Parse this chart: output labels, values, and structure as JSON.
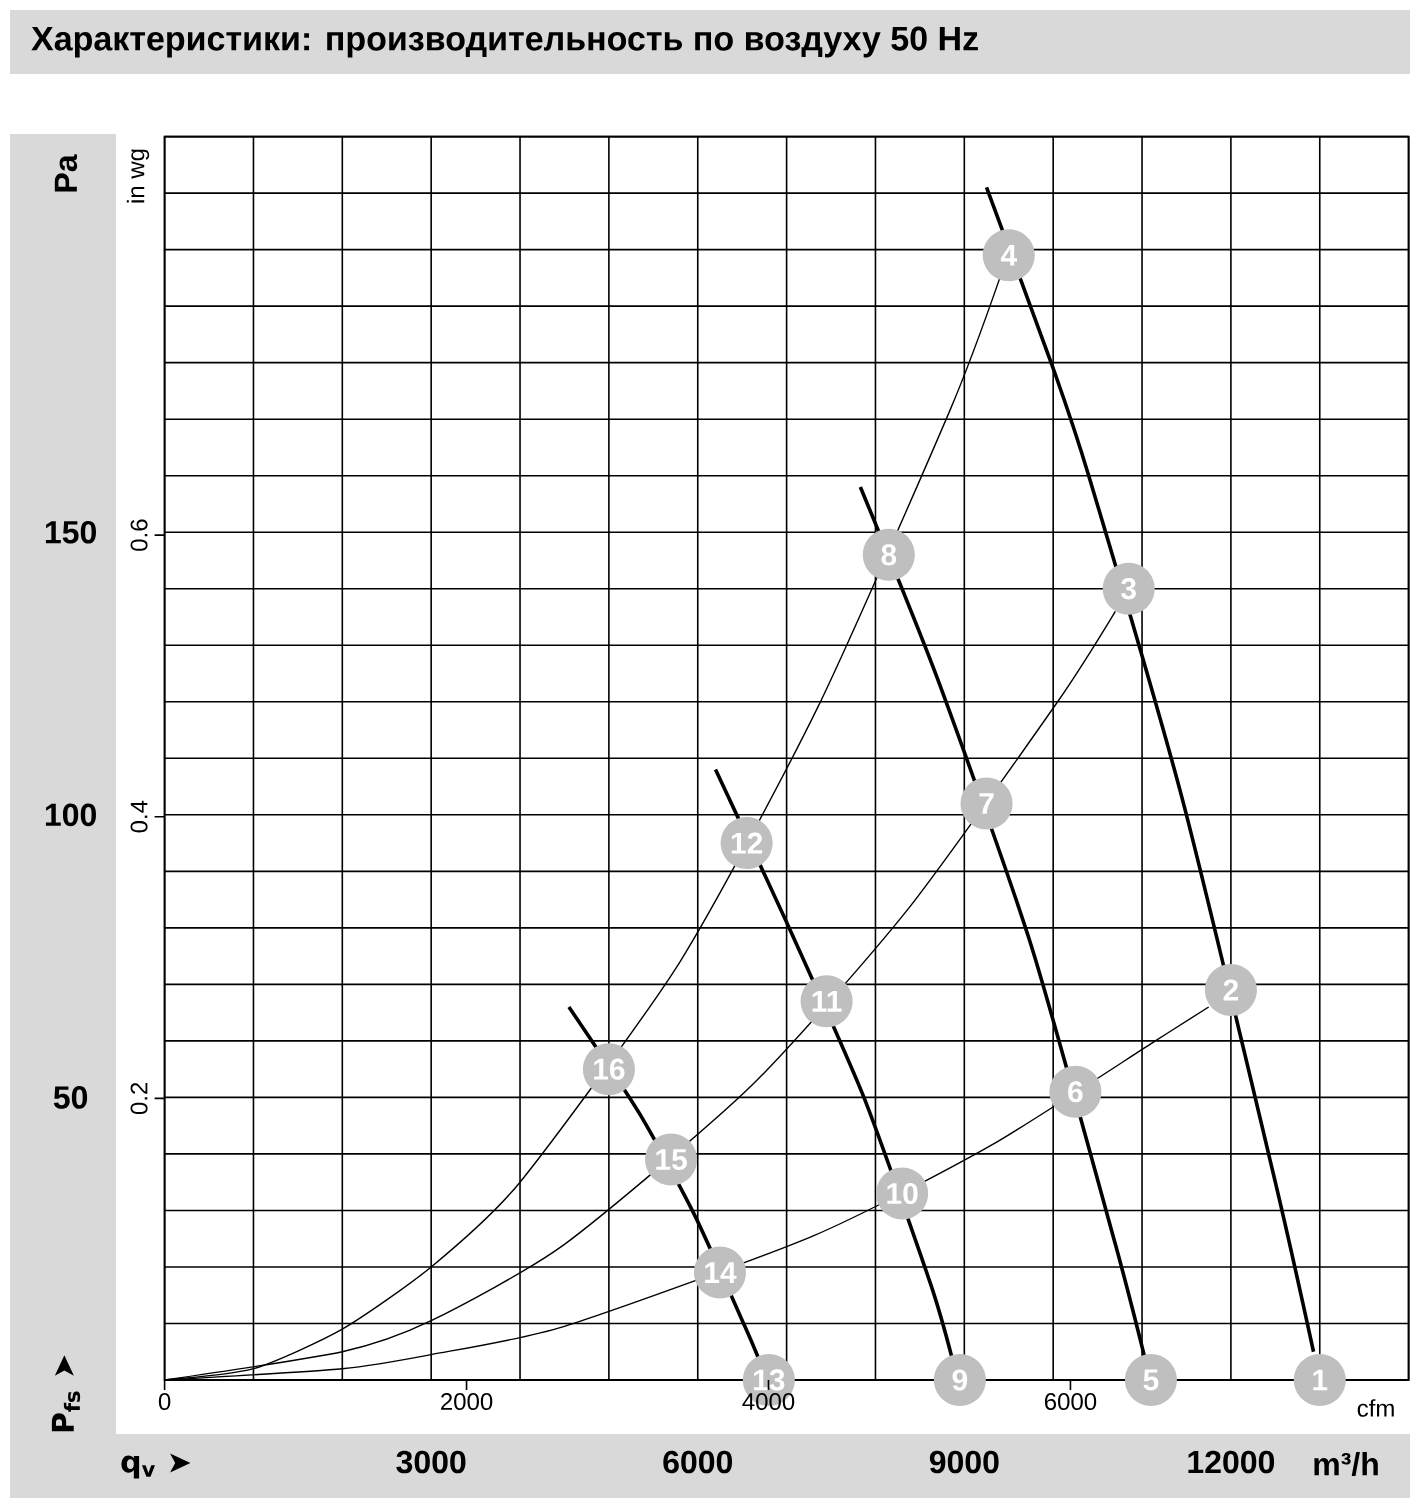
{
  "chart_data": {
    "type": "line",
    "title": "Характеристики: производительность по воздуху 50 Hz",
    "xlabel": "m³/h",
    "ylabel": "Pa",
    "x2label": "cfm",
    "y2label": "in wg",
    "xlim": [
      0,
      14000
    ],
    "ylim": [
      0,
      220
    ],
    "x2lim": [
      0,
      8240
    ],
    "y2lim": [
      0,
      0.883
    ],
    "xticks": [
      {
        "value": 0,
        "label": null
      },
      {
        "value": 1000,
        "label": null
      },
      {
        "value": 2000,
        "label": null
      },
      3000,
      {
        "value": 4000,
        "label": null
      },
      {
        "value": 5000,
        "label": null
      },
      6000,
      {
        "value": 7000,
        "label": null
      },
      {
        "value": 8000,
        "label": null
      },
      9000,
      {
        "value": 10000,
        "label": null
      },
      {
        "value": 11000,
        "label": null
      },
      12000,
      {
        "value": 13000,
        "label": null
      },
      {
        "value": 14000,
        "label": null
      }
    ],
    "yticks": [
      {
        "value": 0,
        "label": null
      },
      {
        "value": 10,
        "label": null
      },
      {
        "value": 20,
        "label": null
      },
      {
        "value": 30,
        "label": null
      },
      {
        "value": 40,
        "label": null
      },
      50,
      {
        "value": 60,
        "label": null
      },
      {
        "value": 70,
        "label": null
      },
      {
        "value": 80,
        "label": null
      },
      {
        "value": 90,
        "label": null
      },
      100,
      {
        "value": 110,
        "label": null
      },
      {
        "value": 120,
        "label": null
      },
      {
        "value": 130,
        "label": null
      },
      {
        "value": 140,
        "label": null
      },
      150,
      {
        "value": 160,
        "label": null
      },
      {
        "value": 170,
        "label": null
      },
      {
        "value": 180,
        "label": null
      },
      {
        "value": 190,
        "label": null
      },
      {
        "value": 200,
        "label": null
      },
      {
        "value": 210,
        "label": null
      },
      {
        "value": 220,
        "label": null
      }
    ],
    "x2ticks": [
      0,
      2000,
      4000,
      6000
    ],
    "y2ticks": [
      0.2,
      0.4,
      0.6
    ],
    "grid": true,
    "series": [
      {
        "color": "#000000",
        "x": [
          9250,
          10000,
          10400,
          11450,
          12500,
          12930
        ],
        "values": [
          211,
          179,
          160,
          103,
          35,
          5
        ]
      },
      {
        "color": "#000000",
        "x": [
          7830,
          8700,
          9750,
          10700,
          11030
        ],
        "values": [
          158,
          124,
          77,
          24,
          4
        ]
      },
      {
        "color": "#000000",
        "x": [
          6200,
          7000,
          7870,
          8620,
          8860
        ],
        "values": [
          108,
          81,
          50,
          17,
          4
        ]
      },
      {
        "color": "#000000",
        "x": [
          4550,
          5350,
          5970,
          6530,
          6680
        ],
        "values": [
          66,
          47,
          29,
          9.5,
          4
        ]
      },
      {
        "color": "#000000",
        "x": [
          0,
          1000,
          2000,
          3000,
          4000,
          5800,
          7350,
          8850,
          9400
        ],
        "values": [
          0,
          2,
          9,
          20,
          35,
          74,
          119,
          172,
          195
        ]
      },
      {
        "color": "#000000",
        "x": [
          0,
          2000,
          3000,
          4500,
          6600,
          8350,
          10050,
          10700
        ],
        "values": [
          0,
          5,
          10.5,
          24,
          52,
          83,
          120,
          136
        ]
      },
      {
        "color": "#000000",
        "x": [
          0,
          2000,
          3000,
          4500,
          7300,
          9300,
          11150,
          11750
        ],
        "values": [
          0,
          2,
          4.5,
          9.5,
          25.5,
          41.5,
          60,
          66
        ]
      }
    ],
    "annotations": [
      {
        "text": "1",
        "x": 13000,
        "y": 0
      },
      {
        "text": "2",
        "x": 12000,
        "y": 69
      },
      {
        "text": "3",
        "x": 10850,
        "y": 140
      },
      {
        "text": "4",
        "x": 9500,
        "y": 199
      },
      {
        "text": "5",
        "x": 11100,
        "y": 0
      },
      {
        "text": "6",
        "x": 10250,
        "y": 51
      },
      {
        "text": "7",
        "x": 9250,
        "y": 102
      },
      {
        "text": "8",
        "x": 8150,
        "y": 146
      },
      {
        "text": "9",
        "x": 8950,
        "y": 0
      },
      {
        "text": "10",
        "x": 8300,
        "y": 33
      },
      {
        "text": "11",
        "x": 7450,
        "y": 67
      },
      {
        "text": "12",
        "x": 6550,
        "y": 95
      },
      {
        "text": "13",
        "x": 6800,
        "y": 0
      },
      {
        "text": "14",
        "x": 6250,
        "y": 19
      },
      {
        "text": "15",
        "x": 5700,
        "y": 39
      },
      {
        "text": "16",
        "x": 5000,
        "y": 55
      },
      "P$_{fs}$ ➤",
      "q$_{v}$ ➤"
    ]
  }
}
